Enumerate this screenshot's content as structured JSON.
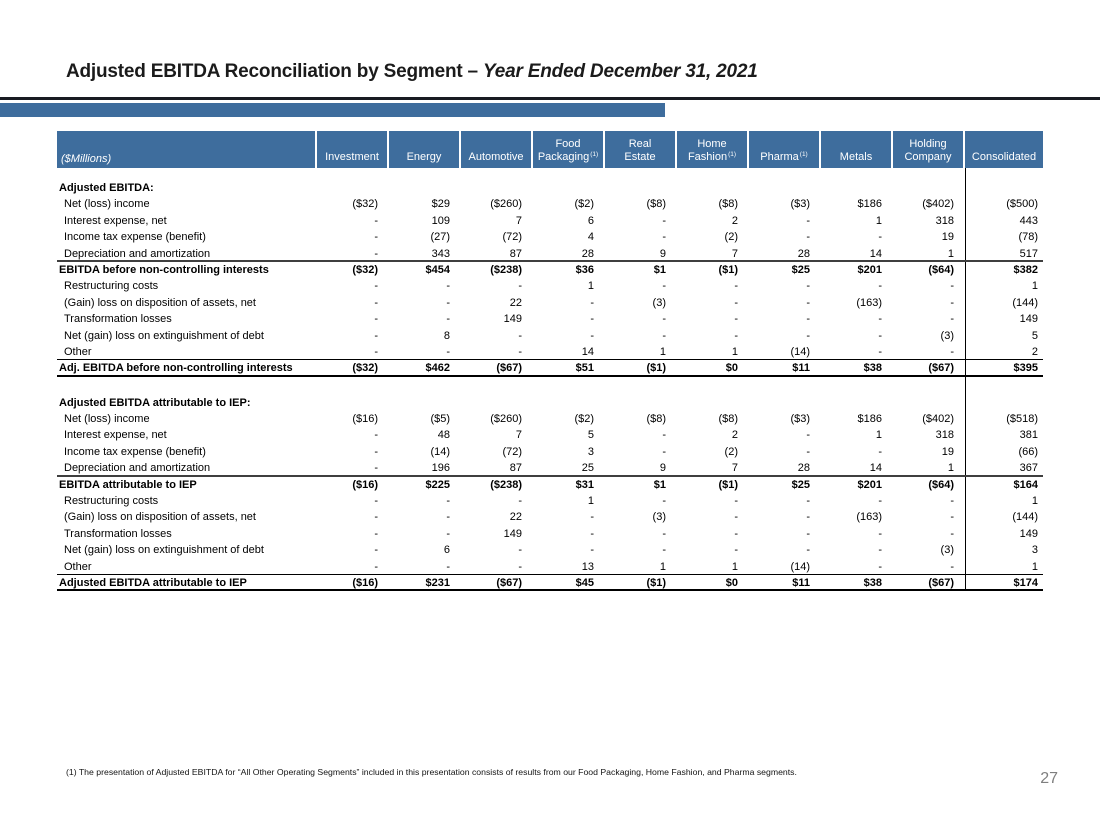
{
  "header": {
    "title_regular": "Adjusted EBITDA Reconciliation by Segment – ",
    "title_italic": "Year Ended December 31, 2021"
  },
  "colors": {
    "header_blue": "#3e6d9d",
    "accent_bar_blue": "#3e6d9d",
    "title_rule_dark": "#181b22",
    "page_number_gray": "#7f7f7f",
    "subtotal_rule_gray": "#3f3f3f",
    "line_black": "#000000"
  },
  "table": {
    "unit_label": "($Millions)",
    "columns": [
      {
        "label": "Investment",
        "lines": [
          "Investment"
        ],
        "sup": ""
      },
      {
        "label": "Energy",
        "lines": [
          "Energy"
        ],
        "sup": ""
      },
      {
        "label": "Automotive",
        "lines": [
          "Automotive"
        ],
        "sup": ""
      },
      {
        "label": "Food Packaging",
        "lines": [
          "Food",
          "Packaging"
        ],
        "sup": "(1)"
      },
      {
        "label": "Real Estate",
        "lines": [
          "Real",
          "Estate"
        ],
        "sup": ""
      },
      {
        "label": "Home Fashion",
        "lines": [
          "Home",
          "Fashion"
        ],
        "sup": "(1)"
      },
      {
        "label": "Pharma",
        "lines": [
          "Pharma"
        ],
        "sup": "(1)"
      },
      {
        "label": "Metals",
        "lines": [
          "Metals"
        ],
        "sup": ""
      },
      {
        "label": "Holding Company",
        "lines": [
          "Holding",
          "Company"
        ],
        "sup": ""
      },
      {
        "label": "Consolidated",
        "lines": [
          "Consolidated"
        ],
        "sup": ""
      }
    ],
    "rows": [
      {
        "label": "Adjusted EBITDA:",
        "style": "section",
        "values": []
      },
      {
        "label": "Net (loss) income",
        "style": "row",
        "values": [
          "($32)",
          "$29",
          "($260)",
          "($2)",
          "($8)",
          "($8)",
          "($3)",
          "$186",
          "($402)",
          "($500)"
        ]
      },
      {
        "label": "Interest expense, net",
        "style": "row",
        "values": [
          "-",
          "109",
          "7",
          "6",
          "-",
          "2",
          "-",
          "1",
          "318",
          "443"
        ]
      },
      {
        "label": "Income tax expense (benefit)",
        "style": "row",
        "values": [
          "-",
          "(27)",
          "(72)",
          "4",
          "-",
          "(2)",
          "-",
          "-",
          "19",
          "(78)"
        ]
      },
      {
        "label": "Depreciation and amortization",
        "style": "row",
        "rule": "gray",
        "values": [
          "-",
          "343",
          "87",
          "28",
          "9",
          "7",
          "28",
          "14",
          "1",
          "517"
        ]
      },
      {
        "label": "EBITDA before non-controlling interests",
        "style": "subtotal",
        "values": [
          "($32)",
          "$454",
          "($238)",
          "$36",
          "$1",
          "($1)",
          "$25",
          "$201",
          "($64)",
          "$382"
        ]
      },
      {
        "label": "Restructuring costs",
        "style": "row",
        "values": [
          "-",
          "-",
          "-",
          "1",
          "-",
          "-",
          "-",
          "-",
          "-",
          "1"
        ]
      },
      {
        "label": "(Gain) loss on disposition of assets, net",
        "style": "row",
        "values": [
          "-",
          "-",
          "22",
          "-",
          "(3)",
          "-",
          "-",
          "(163)",
          "-",
          "(144)"
        ]
      },
      {
        "label": "Transformation losses",
        "style": "row",
        "values": [
          "-",
          "-",
          "149",
          "-",
          "-",
          "-",
          "-",
          "-",
          "-",
          "149"
        ]
      },
      {
        "label": "Net (gain) loss on extinguishment of debt",
        "style": "row",
        "values": [
          "-",
          "8",
          "-",
          "-",
          "-",
          "-",
          "-",
          "-",
          "(3)",
          "5"
        ]
      },
      {
        "label": "Other",
        "style": "row",
        "rule": "thin",
        "values": [
          "-",
          "-",
          "-",
          "14",
          "1",
          "1",
          "(14)",
          "-",
          "-",
          "2"
        ]
      },
      {
        "label": "Adj. EBITDA before non-controlling interests",
        "style": "total",
        "rule": "thick",
        "values": [
          "($32)",
          "$462",
          "($67)",
          "$51",
          "($1)",
          "$0",
          "$11",
          "$38",
          "($67)",
          "$395"
        ]
      },
      {
        "label": "",
        "style": "spacer",
        "values": []
      },
      {
        "label": "Adjusted EBITDA attributable to IEP:",
        "style": "section",
        "values": []
      },
      {
        "label": "Net (loss) income",
        "style": "row",
        "values": [
          "($16)",
          "($5)",
          "($260)",
          "($2)",
          "($8)",
          "($8)",
          "($3)",
          "$186",
          "($402)",
          "($518)"
        ]
      },
      {
        "label": "Interest expense, net",
        "style": "row",
        "values": [
          "-",
          "48",
          "7",
          "5",
          "-",
          "2",
          "-",
          "1",
          "318",
          "381"
        ]
      },
      {
        "label": "Income tax expense (benefit)",
        "style": "row",
        "values": [
          "-",
          "(14)",
          "(72)",
          "3",
          "-",
          "(2)",
          "-",
          "-",
          "19",
          "(66)"
        ]
      },
      {
        "label": "Depreciation and amortization",
        "style": "row",
        "rule": "gray",
        "values": [
          "-",
          "196",
          "87",
          "25",
          "9",
          "7",
          "28",
          "14",
          "1",
          "367"
        ]
      },
      {
        "label": "EBITDA attributable to IEP",
        "style": "subtotal",
        "values": [
          "($16)",
          "$225",
          "($238)",
          "$31",
          "$1",
          "($1)",
          "$25",
          "$201",
          "($64)",
          "$164"
        ]
      },
      {
        "label": "Restructuring costs",
        "style": "row",
        "values": [
          "-",
          "-",
          "-",
          "1",
          "-",
          "-",
          "-",
          "-",
          "-",
          "1"
        ]
      },
      {
        "label": "(Gain) loss on disposition of assets, net",
        "style": "row",
        "values": [
          "-",
          "-",
          "22",
          "-",
          "(3)",
          "-",
          "-",
          "(163)",
          "-",
          "(144)"
        ]
      },
      {
        "label": "Transformation losses",
        "style": "row",
        "values": [
          "-",
          "-",
          "149",
          "-",
          "-",
          "-",
          "-",
          "-",
          "-",
          "149"
        ]
      },
      {
        "label": "Net (gain) loss on extinguishment of debt",
        "style": "row",
        "values": [
          "-",
          "6",
          "-",
          "-",
          "-",
          "-",
          "-",
          "-",
          "(3)",
          "3"
        ]
      },
      {
        "label": "Other",
        "style": "row",
        "rule": "thin",
        "values": [
          "-",
          "-",
          "-",
          "13",
          "1",
          "1",
          "(14)",
          "-",
          "-",
          "1"
        ]
      },
      {
        "label": "Adjusted EBITDA attributable to IEP",
        "style": "total",
        "rule": "thick",
        "values": [
          "($16)",
          "$231",
          "($67)",
          "$45",
          "($1)",
          "$0",
          "$11",
          "$38",
          "($67)",
          "$174"
        ]
      }
    ]
  },
  "footer": {
    "footnote": "(1) The presentation of Adjusted EBITDA for “All Other Operating Segments” included in this presentation consists of results from our Food Packaging, Home Fashion, and Pharma segments.",
    "page_number": "27"
  }
}
